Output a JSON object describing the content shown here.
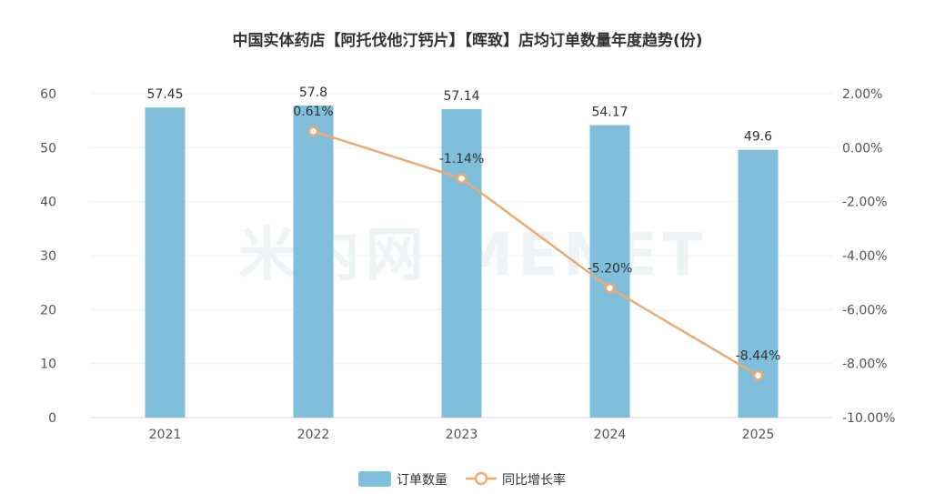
{
  "chart_data": {
    "type": "bar",
    "title": "中国实体药店【阿托伐他汀钙片】【晖致】店均订单数量年度趋势(份)",
    "categories": [
      "2021",
      "2022",
      "2023",
      "2024",
      "2025"
    ],
    "series": [
      {
        "name": "订单数量",
        "type": "bar",
        "axis": "left",
        "color": "#7fbfdc",
        "values": [
          57.45,
          57.8,
          57.14,
          54.17,
          49.6
        ],
        "labels": [
          "57.45",
          "57.8",
          "57.14",
          "54.17",
          "49.6"
        ]
      },
      {
        "name": "同比增长率",
        "type": "line",
        "axis": "right",
        "color": "#eeaa6f",
        "values": [
          null,
          0.61,
          -1.14,
          -5.2,
          -8.44
        ],
        "labels": [
          "",
          "0.61%",
          "-1.14%",
          "-5.20%",
          "-8.44%"
        ]
      }
    ],
    "y_left": {
      "min": 0,
      "max": 60,
      "ticks": [
        0,
        10,
        20,
        30,
        40,
        50,
        60
      ],
      "tick_labels": [
        "0",
        "10",
        "20",
        "30",
        "40",
        "50",
        "60"
      ]
    },
    "y_right": {
      "min": -10,
      "max": 2,
      "ticks": [
        -10,
        -8,
        -6,
        -4,
        -2,
        0,
        2
      ],
      "tick_labels": [
        "-10.00%",
        "-8.00%",
        "-6.00%",
        "-4.00%",
        "-2.00%",
        "0.00%",
        "2.00%"
      ]
    },
    "legend": [
      "订单数量",
      "同比增长率"
    ],
    "watermark": "米内网 MENET",
    "grid": true
  }
}
